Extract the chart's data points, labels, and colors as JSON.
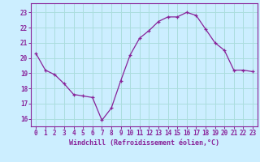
{
  "x": [
    0,
    1,
    2,
    3,
    4,
    5,
    6,
    7,
    8,
    9,
    10,
    11,
    12,
    13,
    14,
    15,
    16,
    17,
    18,
    19,
    20,
    21,
    22,
    23
  ],
  "y": [
    20.3,
    19.2,
    18.9,
    18.3,
    17.6,
    17.5,
    17.4,
    15.9,
    16.7,
    18.5,
    20.2,
    21.3,
    21.8,
    22.4,
    22.7,
    22.7,
    23.0,
    22.8,
    21.9,
    21.0,
    20.5,
    19.2,
    19.2,
    19.1
  ],
  "line_color": "#882299",
  "marker": "+",
  "bg_color": "#cceeff",
  "grid_color": "#aadddd",
  "xlabel": "Windchill (Refroidissement éolien,°C)",
  "ylabel_ticks": [
    16,
    17,
    18,
    19,
    20,
    21,
    22,
    23
  ],
  "xlim": [
    -0.5,
    23.5
  ],
  "ylim": [
    15.5,
    23.6
  ],
  "tick_fontsize": 5.5,
  "xlabel_fontsize": 6.0
}
